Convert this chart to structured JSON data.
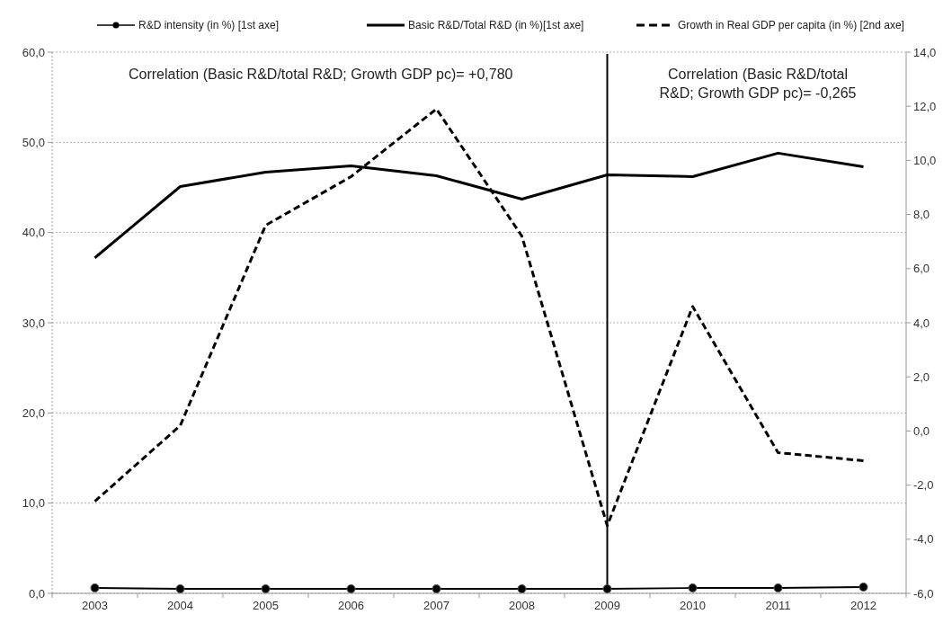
{
  "chart_data": {
    "type": "line",
    "categories": [
      "2003",
      "2004",
      "2005",
      "2006",
      "2007",
      "2008",
      "2009",
      "2010",
      "2011",
      "2012"
    ],
    "series": [
      {
        "name": "R&D intensity (in %) [1st axe]",
        "color": "#000000",
        "marker": "circle",
        "line_style": "solid",
        "values": [
          0.6,
          0.5,
          0.5,
          0.5,
          0.5,
          0.5,
          0.5,
          0.6,
          0.6,
          0.7
        ]
      },
      {
        "name": "Basic R&D/Total R&D (in %)[1st axe]",
        "color": "#000000",
        "marker": "none",
        "line_style": "solid",
        "values": [
          37.2,
          45.1,
          46.7,
          47.4,
          46.3,
          43.7,
          46.4,
          46.2,
          48.8,
          47.3
        ]
      },
      {
        "name": "Growth in Real GDP per capita (in %) [2nd axe]",
        "color": "#000000",
        "marker": "none",
        "line_style": "dashed",
        "axis": "y2",
        "values": [
          -2.6,
          0.2,
          7.6,
          9.4,
          11.9,
          7.2,
          -3.5,
          4.6,
          -0.8,
          -1.1
        ]
      }
    ],
    "ylim": [
      0,
      60
    ],
    "yticks": [
      {
        "value": 0,
        "label": "0,0"
      },
      {
        "value": 10,
        "label": "10,0"
      },
      {
        "value": 20,
        "label": "20,0"
      },
      {
        "value": 30,
        "label": "30,0"
      },
      {
        "value": 40,
        "label": "40,0"
      },
      {
        "value": 50,
        "label": "50,0"
      },
      {
        "value": 60,
        "label": "60,0"
      }
    ],
    "y2lim": [
      -6,
      14
    ],
    "y2ticks": [
      {
        "value": -6,
        "label": "-6,0"
      },
      {
        "value": -4,
        "label": "-4,0"
      },
      {
        "value": -2,
        "label": "-2,0"
      },
      {
        "value": 0,
        "label": "0,0"
      },
      {
        "value": 2,
        "label": "2,0"
      },
      {
        "value": 4,
        "label": "4,0"
      },
      {
        "value": 6,
        "label": "6,0"
      },
      {
        "value": 8,
        "label": "8,0"
      },
      {
        "value": 10,
        "label": "10,0"
      },
      {
        "value": 12,
        "label": "12,0"
      },
      {
        "value": 14,
        "label": "14,0"
      }
    ],
    "grid": "y",
    "legend": "top",
    "ref_lines": [
      {
        "axis": "x",
        "value": "2009",
        "color": "#000000"
      }
    ],
    "annotations": [
      "Correlation (Basic R&D/total R&D; Growth GDP pc)= +0,780",
      "Correlation (Basic R&D/total R&D; Growth GDP pc)= -0,265"
    ]
  }
}
